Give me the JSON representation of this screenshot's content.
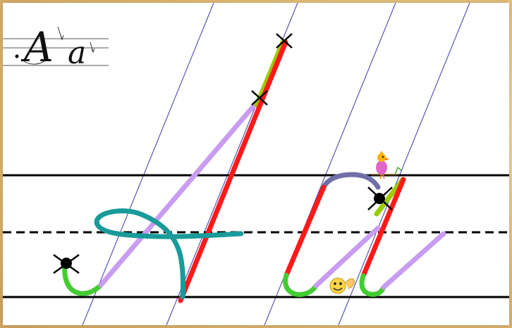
{
  "sample": {
    "upper": "A",
    "lower": "a"
  },
  "colors": {
    "guide_line": "#000000",
    "slant_line": "#3a3aa8",
    "main_stroke": "#ff1a1a",
    "connector": "#c89cf0",
    "loop": "#1a9a9a",
    "hook": "#44cc33",
    "arch": "#6f6fa8",
    "tip": "#99cc00",
    "marker": "#000000"
  },
  "icons": [
    "bird-icon",
    "smiley-icon",
    "start-dot-icon",
    "cross-mark-icon"
  ]
}
